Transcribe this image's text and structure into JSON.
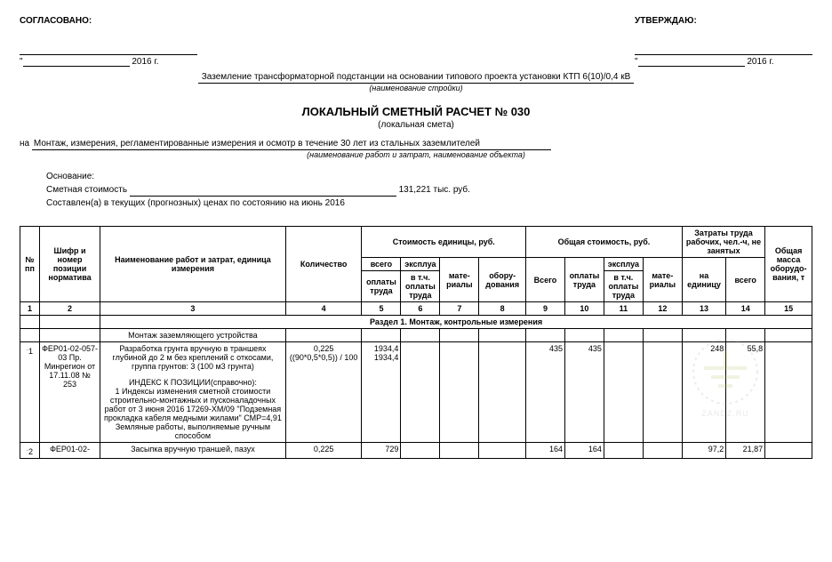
{
  "header": {
    "agreed": "СОГЛАСОВАНО:",
    "approved": "УТВЕРЖДАЮ:",
    "year_suffix": "2016 г."
  },
  "construction": {
    "name": "Заземление трансформаторной подстанции на основании типового проекта установки КТП 6(10)/0,4 кВ",
    "caption": "(наименование стройки)"
  },
  "title": {
    "main": "ЛОКАЛЬНЫЙ СМЕТНЫЙ РАСЧЕТ № 030",
    "sub": "(локальная смета)"
  },
  "works": {
    "prefix": "на",
    "name": "Монтаж, измерения, регламентированные измерения и осмотр в течение 30 лет из стальных заземлителей",
    "caption": "(наименование работ и затрат, наименование объекта)"
  },
  "info": {
    "basis": "Основание:",
    "cost_label": "Сметная стоимость",
    "cost_value": "131,221 тыс. руб.",
    "compiled": "Составлен(а) в текущих (прогнозных) ценах по состоянию на июнь 2016"
  },
  "table_headers": {
    "c1": "№ пп",
    "c2": "Шифр и номер позиции норматива",
    "c3": "Наименование работ и затрат, единица измерения",
    "c4": "Количество",
    "g_unit": "Стоимость единицы, руб.",
    "g_total": "Общая стоимость, руб.",
    "g_labor": "Затраты труда рабочих, чел.-ч, не занятых",
    "c15_top": "Общая масса оборудо- вания, т",
    "vsego": "всего",
    "eksplua": "эксплуа",
    "oplata": "оплаты труда",
    "vtch": "в т.ч. оплаты труда",
    "mate": "мате- риалы",
    "oboru": "обору- дования",
    "Vsego": "Всего",
    "na_ed": "на единицу",
    "vsego2": "всего"
  },
  "col_nums": [
    "1",
    "2",
    "3",
    "4",
    "5",
    "6",
    "7",
    "8",
    "9",
    "10",
    "11",
    "12",
    "13",
    "14",
    "15"
  ],
  "section1": "Раздел 1. Монтаж, контрольные измерения",
  "subsection1": "Монтаж заземляющего устройства",
  "row1": {
    "num_html": "<sup>.</sup>1",
    "code": "ФЕР01-02-057-03 Пр. Минрегион от 17.11.08 № 253",
    "desc": "Разработка грунта вручную в траншеях глубиной до 2 м без креплений с откосами, группа грунтов: 3 (100 м3 грунта)",
    "index_title": "ИНДЕКС К ПОЗИЦИИ(справочно):",
    "index_body": "1 Индексы изменения сметной стоимости строительно-монтажных и пусконаладочных работ от 3 июня 2016 17269-ХМ/09  \"Подземная прокладка кабеля медными жилами\" СМР=4,91 Земляные работы, выполняемые ручным способом",
    "qty": "0,225",
    "qty_formula": "((90*0,5*0,5)) / 100",
    "v5": "1934,4",
    "v5b": "1934,4",
    "v9": "435",
    "v10": "435",
    "v13": "248",
    "v14": "55,8"
  },
  "row2": {
    "num_html": "<sup>.</sup>2",
    "code": "ФЕР01-02-",
    "desc": "Засыпка вручную траншей, пазух",
    "qty": "0,225",
    "v5": "729",
    "v9": "164",
    "v10": "164",
    "v13": "97,2",
    "v14": "21,87"
  },
  "watermark": {
    "brand": "ZANDZ.RU"
  },
  "colors": {
    "border": "#000000",
    "text": "#000000",
    "wm": "#7a7a7a"
  }
}
